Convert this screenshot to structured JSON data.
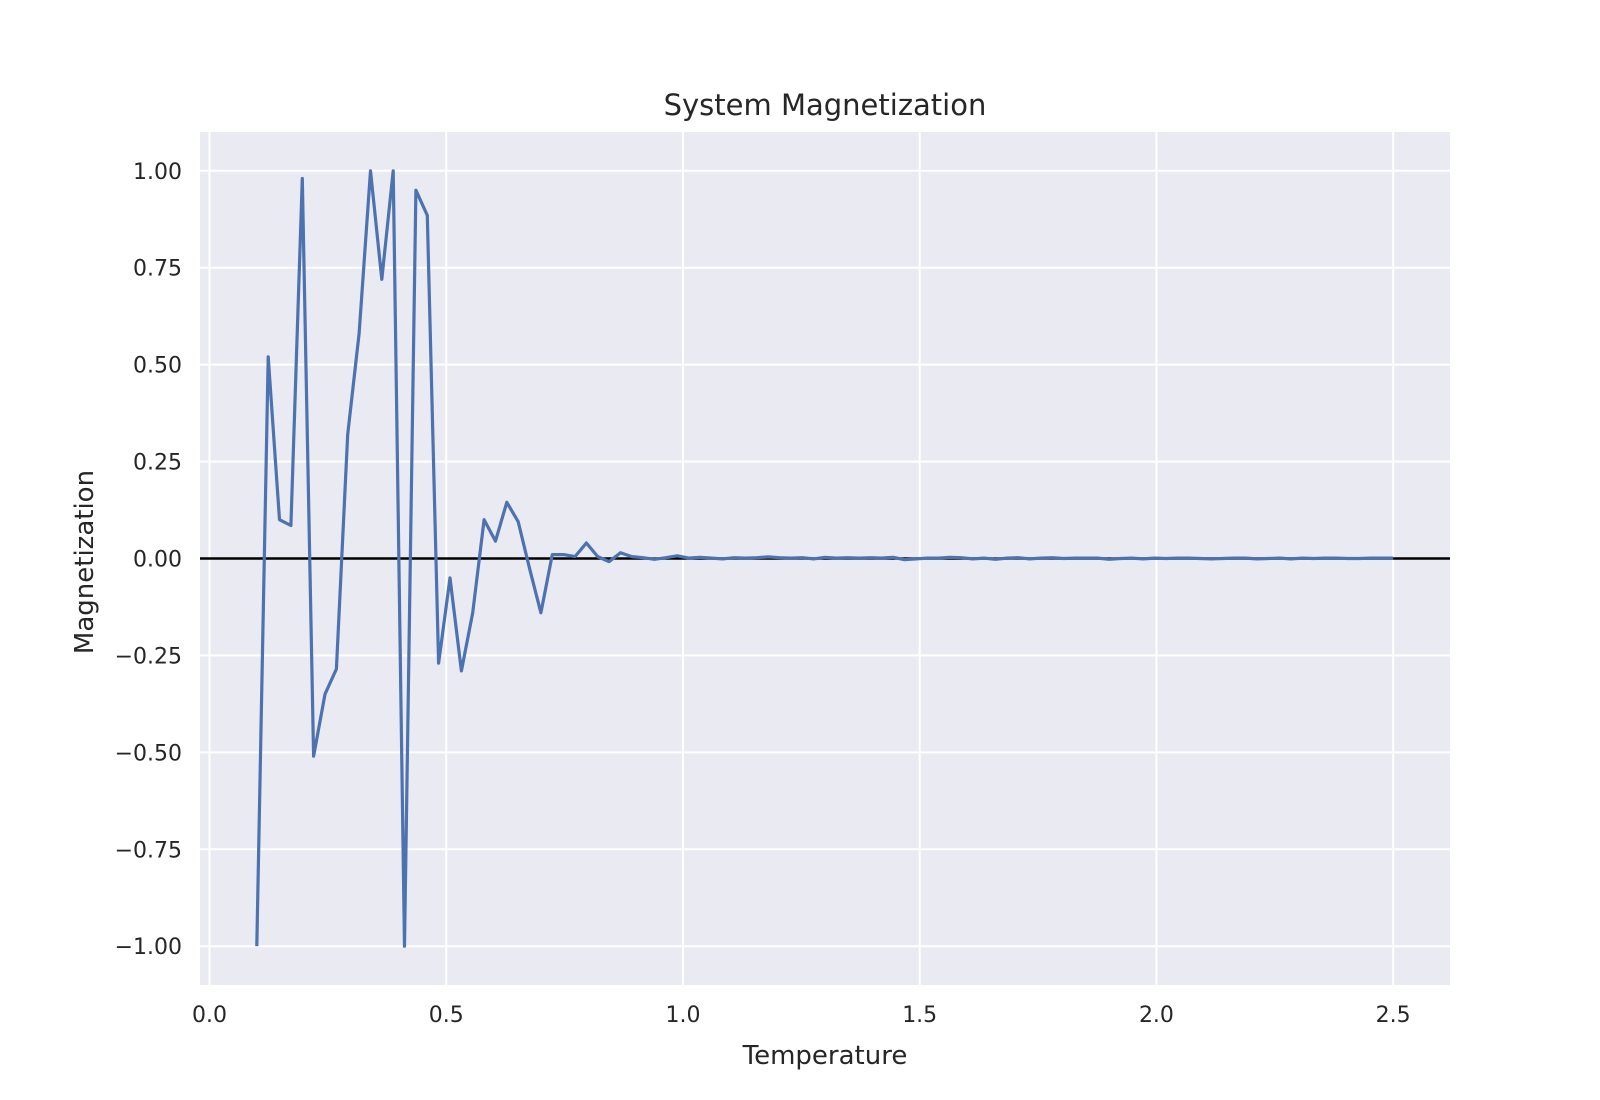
{
  "chart_data": {
    "type": "line",
    "title": "System Magnetization",
    "xlabel": "Temperature",
    "ylabel": "Magnetization",
    "xlim": [
      -0.02,
      2.62
    ],
    "ylim": [
      -1.1,
      1.1
    ],
    "x_ticks": [
      0.0,
      0.5,
      1.0,
      1.5,
      2.0,
      2.5
    ],
    "x_tick_labels": [
      "0.0",
      "0.5",
      "1.0",
      "1.5",
      "2.0",
      "2.5"
    ],
    "y_ticks": [
      1.0,
      0.75,
      0.5,
      0.25,
      0.0,
      -0.25,
      -0.5,
      -0.75,
      -1.0
    ],
    "y_tick_labels": [
      "1.00",
      "0.75",
      "0.50",
      "0.25",
      "0.00",
      "−0.25",
      "−0.50",
      "−0.75",
      "−1.00"
    ],
    "grid": true,
    "reference_line_y": 0.0,
    "colors": {
      "background": "#eaeaf2",
      "grid": "#ffffff",
      "series": "#4c72b0",
      "reference_line": "#000000"
    },
    "series": [
      {
        "x": [
          0.1,
          0.124,
          0.148,
          0.172,
          0.196,
          0.22,
          0.244,
          0.268,
          0.292,
          0.316,
          0.34,
          0.364,
          0.388,
          0.412,
          0.436,
          0.46,
          0.484,
          0.508,
          0.532,
          0.556,
          0.58,
          0.604,
          0.628,
          0.652,
          0.676,
          0.7,
          0.724,
          0.748,
          0.772,
          0.796,
          0.82,
          0.844,
          0.868,
          0.892,
          0.916,
          0.94,
          0.964,
          0.988,
          1.012,
          1.036,
          1.06,
          1.084,
          1.108,
          1.132,
          1.156,
          1.18,
          1.204,
          1.228,
          1.252,
          1.276,
          1.3,
          1.324,
          1.348,
          1.372,
          1.396,
          1.42,
          1.444,
          1.468,
          1.492,
          1.516,
          1.54,
          1.564,
          1.588,
          1.612,
          1.636,
          1.66,
          1.684,
          1.708,
          1.732,
          1.756,
          1.78,
          1.804,
          1.828,
          1.852,
          1.876,
          1.9,
          1.924,
          1.948,
          1.972,
          1.996,
          2.02,
          2.044,
          2.068,
          2.092,
          2.116,
          2.14,
          2.164,
          2.188,
          2.212,
          2.236,
          2.26,
          2.284,
          2.308,
          2.332,
          2.356,
          2.38,
          2.404,
          2.428,
          2.452,
          2.476,
          2.5
        ],
        "values": [
          -1.0,
          0.52,
          0.1,
          0.085,
          0.98,
          -0.51,
          -0.35,
          -0.285,
          0.32,
          0.58,
          1.0,
          0.72,
          1.0,
          -1.0,
          0.95,
          0.885,
          -0.27,
          -0.05,
          -0.29,
          -0.14,
          0.1,
          0.045,
          0.145,
          0.095,
          -0.025,
          -0.14,
          0.01,
          0.01,
          0.005,
          0.04,
          0.005,
          -0.008,
          0.015,
          0.005,
          0.002,
          -0.002,
          0.002,
          0.007,
          0.001,
          0.003,
          0.001,
          -0.001,
          0.002,
          0.001,
          0.002,
          0.004,
          0.002,
          0.001,
          0.002,
          -0.001,
          0.003,
          0.001,
          0.002,
          0.001,
          0.002,
          0.001,
          0.003,
          -0.003,
          -0.001,
          0.001,
          0.001,
          0.003,
          0.002,
          -0.001,
          0.001,
          -0.002,
          0.001,
          0.002,
          -0.001,
          0.001,
          0.002,
          0.0,
          0.001,
          0.001,
          0.001,
          -0.002,
          0.0,
          0.001,
          -0.001,
          0.001,
          0.0,
          0.001,
          0.001,
          0.0,
          -0.001,
          0.0,
          0.001,
          0.001,
          -0.001,
          0.0,
          0.001,
          -0.001,
          0.001,
          0.0,
          0.001,
          0.001,
          0.0,
          0.0,
          0.001,
          0.001,
          0.001
        ]
      }
    ]
  }
}
